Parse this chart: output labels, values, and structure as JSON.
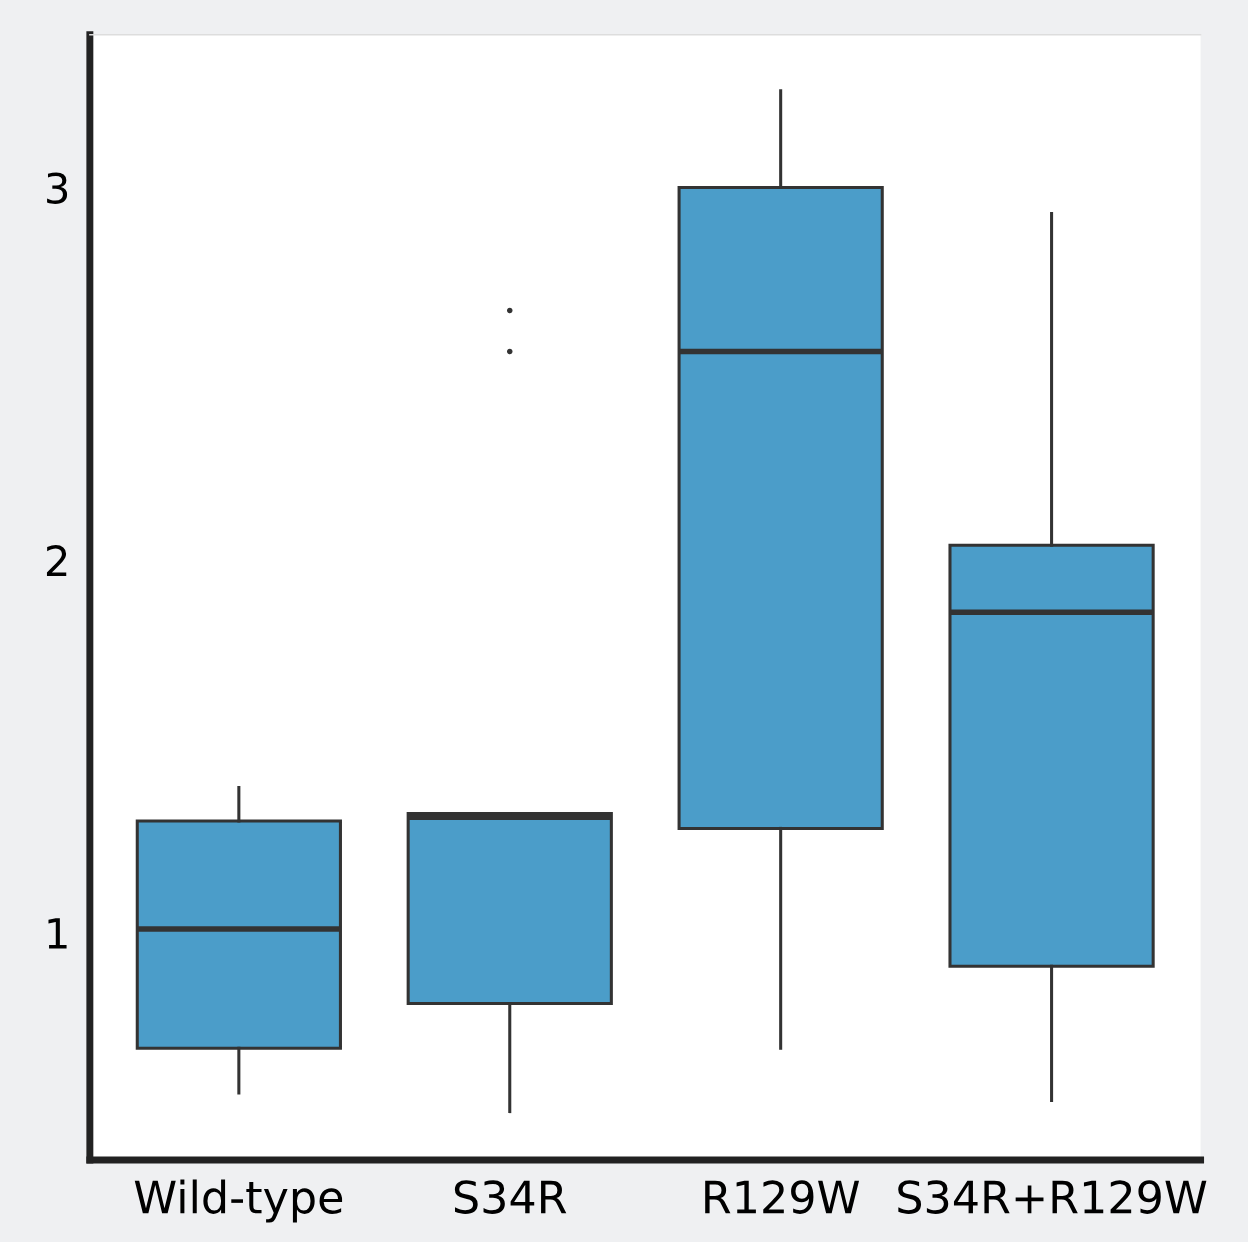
{
  "chart_data": {
    "type": "box",
    "categories": [
      "Wild-type",
      "S34R",
      "R129W",
      "S34R+R129W"
    ],
    "color": "#4b9dc9",
    "boxes": [
      {
        "low": 0.57,
        "q1": 0.69,
        "median": 1.01,
        "q3": 1.3,
        "high": 1.39
      },
      {
        "low": 0.52,
        "q1": 0.81,
        "median": 1.31,
        "q3": 1.32,
        "high": 1.32,
        "outliers": [
          2.67,
          2.56
        ]
      },
      {
        "low": 0.69,
        "q1": 1.28,
        "median": 2.56,
        "q3": 3.0,
        "high": 3.26
      },
      {
        "low": 0.55,
        "q1": 0.91,
        "median": 1.86,
        "q3": 2.04,
        "high": 2.93
      }
    ],
    "ylim": [
      0.39,
      3.41
    ],
    "yticks": [
      1,
      2,
      3
    ],
    "grid": false
  }
}
